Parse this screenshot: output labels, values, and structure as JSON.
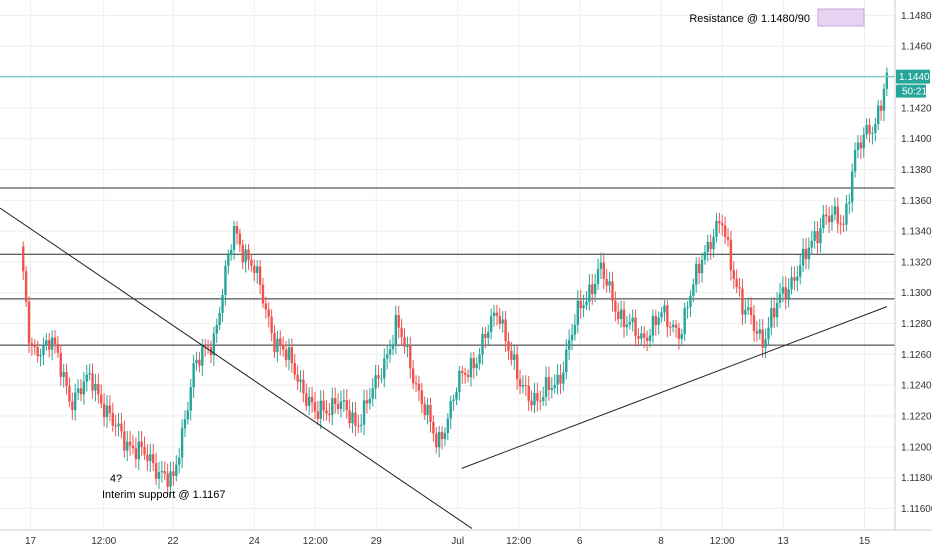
{
  "chart_data": {
    "type": "candlestick",
    "instrument_current_price_label": "1.14403",
    "countdown_label": "50:21",
    "y_ticks": [
      "1.14800",
      "1.14600",
      "1.14200",
      "1.14000",
      "1.13800",
      "1.13600",
      "1.13400",
      "1.13200",
      "1.13000",
      "1.12800",
      "1.12600",
      "1.12400",
      "1.12200",
      "1.12000",
      "1.11800",
      "1.11600"
    ],
    "y_tick_values": [
      1.148,
      1.146,
      1.142,
      1.14,
      1.138,
      1.136,
      1.134,
      1.132,
      1.13,
      1.128,
      1.126,
      1.124,
      1.122,
      1.12,
      1.118,
      1.116
    ],
    "ylim": [
      1.1146,
      1.149
    ],
    "x_ticks": [
      "17",
      "12:00",
      "22",
      "24",
      "12:00",
      "29",
      "Jul",
      "12:00",
      "6",
      "8",
      "12:00",
      "13",
      "15"
    ],
    "x_tick_positions": [
      0.5,
      4.1,
      7.5,
      11.5,
      14.5,
      17.5,
      21.5,
      24.5,
      27.5,
      31.5,
      34.5,
      37.5,
      41.5
    ],
    "x_range": [
      -1,
      43
    ],
    "horizontal_levels": [
      1.1368,
      1.1325,
      1.1296,
      1.1266
    ],
    "current_price_line": 1.14403,
    "trendlines": [
      {
        "x1": -1,
        "y1": 1.1355,
        "x2": 22.2,
        "y2": 1.1147
      },
      {
        "x1": 21.7,
        "y1": 1.1186,
        "x2": 42.6,
        "y2": 1.1291
      }
    ],
    "annotations": {
      "resistance_label": "Resistance @ 1.1480/90",
      "resistance_swatch_color": "#e8d4f2",
      "question_mark": "4?",
      "support_label": "Interim support @ 1.1167"
    },
    "colors": {
      "up": "#26a69a",
      "down": "#ef5350",
      "current_price_line": "#80cbc4",
      "badge": "#26a69a",
      "level": "#2b2b2b",
      "grid": "#eeeeee"
    },
    "close_path": [
      [
        0,
        1.133
      ],
      [
        0.5,
        1.126
      ],
      [
        1.5,
        1.127
      ],
      [
        2.5,
        1.123
      ],
      [
        3.5,
        1.1245
      ],
      [
        4.5,
        1.1215
      ],
      [
        5.5,
        1.12
      ],
      [
        6.5,
        1.119
      ],
      [
        7.5,
        1.1175
      ],
      [
        8.5,
        1.125
      ],
      [
        9.5,
        1.127
      ],
      [
        10.5,
        1.134
      ],
      [
        11.5,
        1.1315
      ],
      [
        12.5,
        1.127
      ],
      [
        13.5,
        1.125
      ],
      [
        14.5,
        1.122
      ],
      [
        15.5,
        1.123
      ],
      [
        16.5,
        1.1215
      ],
      [
        17.5,
        1.124
      ],
      [
        18.5,
        1.128
      ],
      [
        19.5,
        1.124
      ],
      [
        20.5,
        1.12
      ],
      [
        21.5,
        1.124
      ],
      [
        22.5,
        1.126
      ],
      [
        23.5,
        1.129
      ],
      [
        24.5,
        1.124
      ],
      [
        25.5,
        1.123
      ],
      [
        26.5,
        1.1245
      ],
      [
        27.5,
        1.129
      ],
      [
        28.5,
        1.1315
      ],
      [
        29.5,
        1.1285
      ],
      [
        30.5,
        1.127
      ],
      [
        31.5,
        1.1285
      ],
      [
        32.5,
        1.1275
      ],
      [
        33.5,
        1.1325
      ],
      [
        34.5,
        1.1345
      ],
      [
        35.5,
        1.129
      ],
      [
        36.5,
        1.127
      ],
      [
        37.5,
        1.13
      ],
      [
        38.5,
        1.132
      ],
      [
        39.5,
        1.135
      ],
      [
        40.5,
        1.1345
      ],
      [
        41.0,
        1.139
      ],
      [
        41.5,
        1.14
      ],
      [
        42.0,
        1.141
      ],
      [
        42.6,
        1.144
      ]
    ]
  }
}
